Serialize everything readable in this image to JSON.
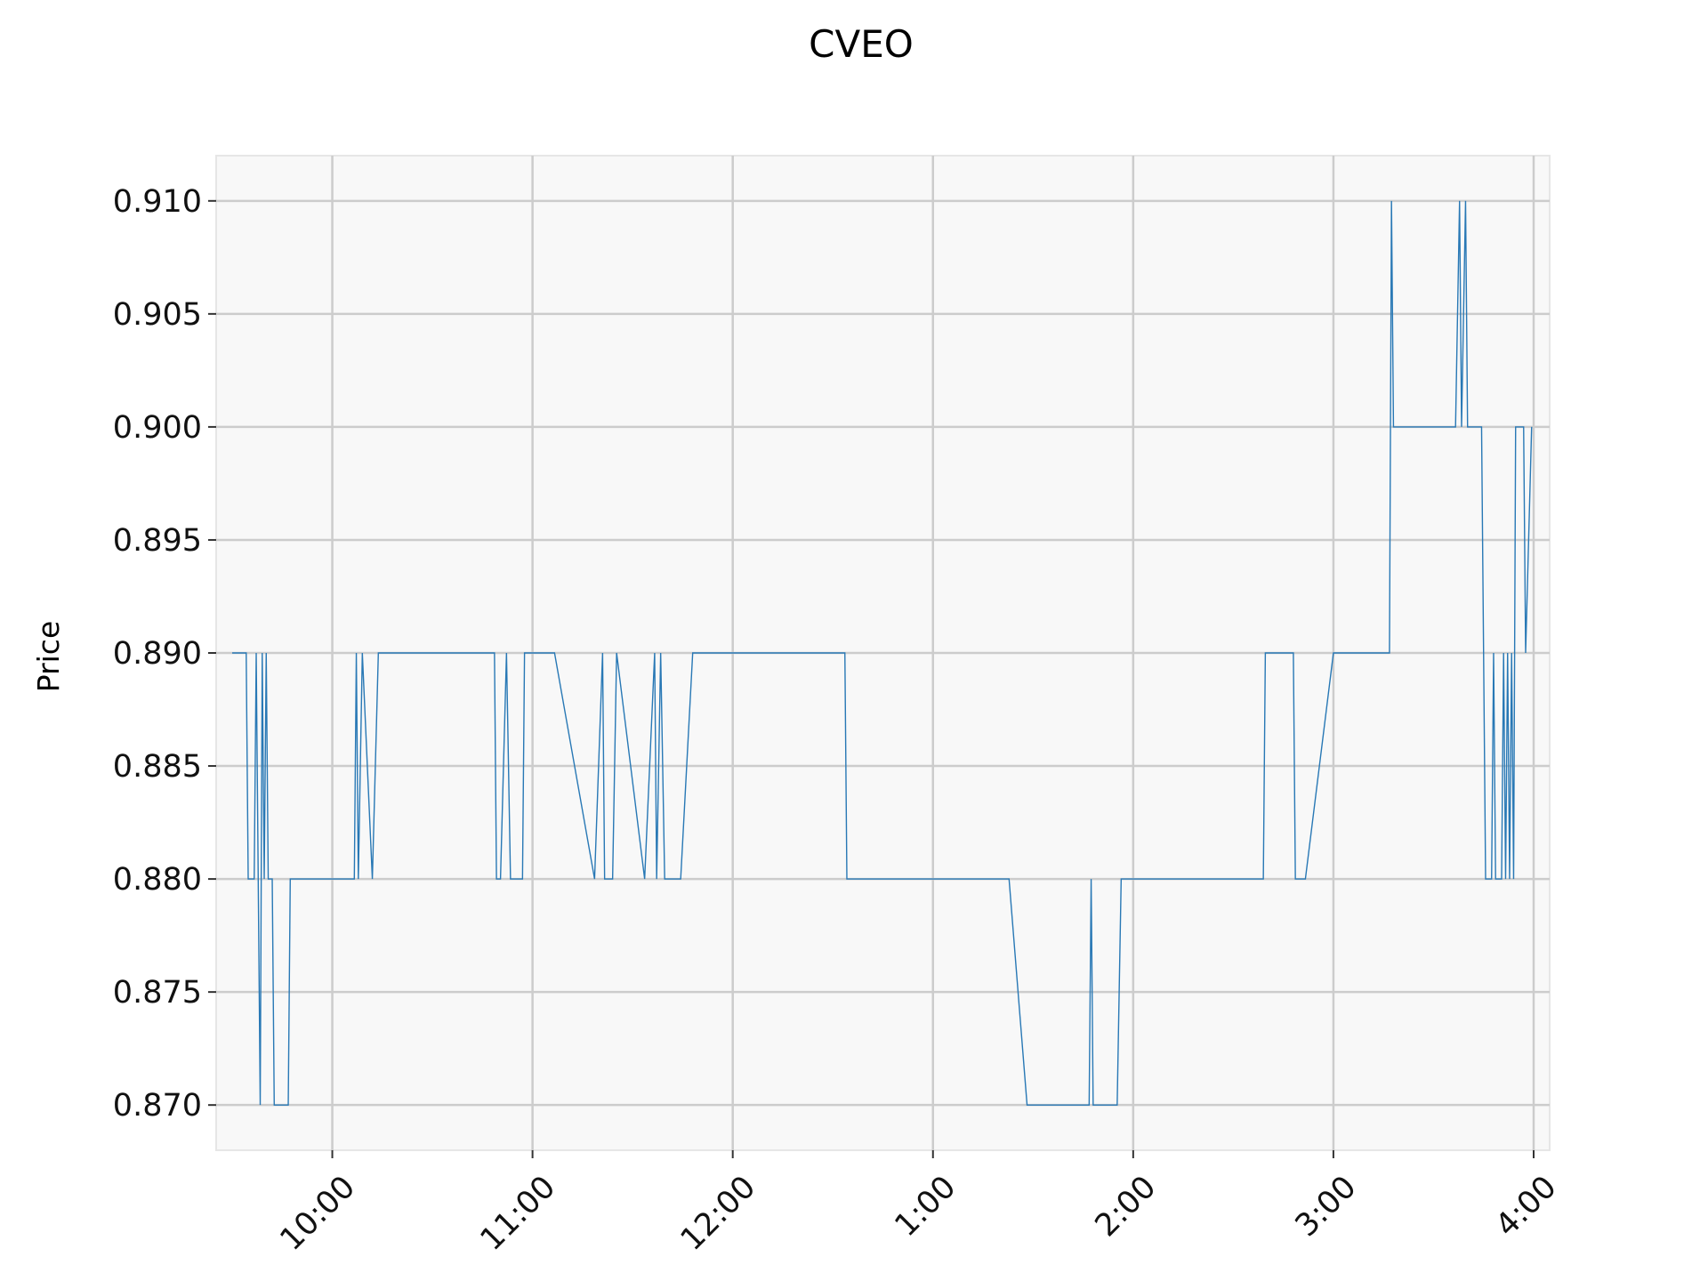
{
  "chart_data": {
    "type": "line",
    "title": "CVEO",
    "xlabel": "",
    "ylabel": "Price",
    "grid": true,
    "xlim_hours": [
      9.42,
      16.08
    ],
    "ylim": [
      0.868,
      0.912
    ],
    "x_ticks": [
      {
        "hour": 10,
        "label": "10:00"
      },
      {
        "hour": 11,
        "label": "11:00"
      },
      {
        "hour": 12,
        "label": "12:00"
      },
      {
        "hour": 13,
        "label": "1:00"
      },
      {
        "hour": 14,
        "label": "2:00"
      },
      {
        "hour": 15,
        "label": "3:00"
      },
      {
        "hour": 16,
        "label": "4:00"
      }
    ],
    "y_ticks": [
      {
        "value": 0.87,
        "label": "0.870"
      },
      {
        "value": 0.875,
        "label": "0.875"
      },
      {
        "value": 0.88,
        "label": "0.880"
      },
      {
        "value": 0.885,
        "label": "0.885"
      },
      {
        "value": 0.89,
        "label": "0.890"
      },
      {
        "value": 0.895,
        "label": "0.895"
      },
      {
        "value": 0.9,
        "label": "0.900"
      },
      {
        "value": 0.905,
        "label": "0.905"
      },
      {
        "value": 0.91,
        "label": "0.910"
      }
    ],
    "series": [
      {
        "color": "#2878b5",
        "points": [
          [
            9.5,
            0.89
          ],
          [
            9.57,
            0.89
          ],
          [
            9.58,
            0.88
          ],
          [
            9.61,
            0.88
          ],
          [
            9.62,
            0.89
          ],
          [
            9.63,
            0.88
          ],
          [
            9.64,
            0.87
          ],
          [
            9.65,
            0.89
          ],
          [
            9.66,
            0.88
          ],
          [
            9.67,
            0.89
          ],
          [
            9.68,
            0.88
          ],
          [
            9.7,
            0.88
          ],
          [
            9.71,
            0.87
          ],
          [
            9.78,
            0.87
          ],
          [
            9.79,
            0.88
          ],
          [
            10.11,
            0.88
          ],
          [
            10.12,
            0.89
          ],
          [
            10.13,
            0.88
          ],
          [
            10.15,
            0.89
          ],
          [
            10.2,
            0.88
          ],
          [
            10.23,
            0.89
          ],
          [
            10.81,
            0.89
          ],
          [
            10.82,
            0.88
          ],
          [
            10.84,
            0.88
          ],
          [
            10.87,
            0.89
          ],
          [
            10.89,
            0.88
          ],
          [
            10.95,
            0.88
          ],
          [
            10.96,
            0.89
          ],
          [
            11.11,
            0.89
          ],
          [
            11.31,
            0.88
          ],
          [
            11.35,
            0.89
          ],
          [
            11.36,
            0.88
          ],
          [
            11.4,
            0.88
          ],
          [
            11.42,
            0.89
          ],
          [
            11.56,
            0.88
          ],
          [
            11.61,
            0.89
          ],
          [
            11.62,
            0.88
          ],
          [
            11.64,
            0.89
          ],
          [
            11.66,
            0.88
          ],
          [
            11.74,
            0.88
          ],
          [
            11.8,
            0.89
          ],
          [
            12.56,
            0.89
          ],
          [
            12.57,
            0.88
          ],
          [
            13.38,
            0.88
          ],
          [
            13.47,
            0.87
          ],
          [
            13.78,
            0.87
          ],
          [
            13.79,
            0.88
          ],
          [
            13.8,
            0.87
          ],
          [
            13.92,
            0.87
          ],
          [
            13.94,
            0.88
          ],
          [
            14.65,
            0.88
          ],
          [
            14.66,
            0.89
          ],
          [
            14.8,
            0.89
          ],
          [
            14.81,
            0.88
          ],
          [
            14.86,
            0.88
          ],
          [
            15.0,
            0.89
          ],
          [
            15.28,
            0.89
          ],
          [
            15.29,
            0.91
          ],
          [
            15.3,
            0.9
          ],
          [
            15.61,
            0.9
          ],
          [
            15.63,
            0.91
          ],
          [
            15.64,
            0.9
          ],
          [
            15.66,
            0.91
          ],
          [
            15.67,
            0.9
          ],
          [
            15.74,
            0.9
          ],
          [
            15.75,
            0.89
          ],
          [
            15.76,
            0.88
          ],
          [
            15.79,
            0.88
          ],
          [
            15.8,
            0.89
          ],
          [
            15.81,
            0.88
          ],
          [
            15.84,
            0.88
          ],
          [
            15.85,
            0.89
          ],
          [
            15.86,
            0.88
          ],
          [
            15.87,
            0.89
          ],
          [
            15.88,
            0.88
          ],
          [
            15.89,
            0.89
          ],
          [
            15.9,
            0.88
          ],
          [
            15.91,
            0.9
          ],
          [
            15.95,
            0.9
          ],
          [
            15.96,
            0.89
          ],
          [
            15.99,
            0.9
          ]
        ]
      }
    ]
  }
}
